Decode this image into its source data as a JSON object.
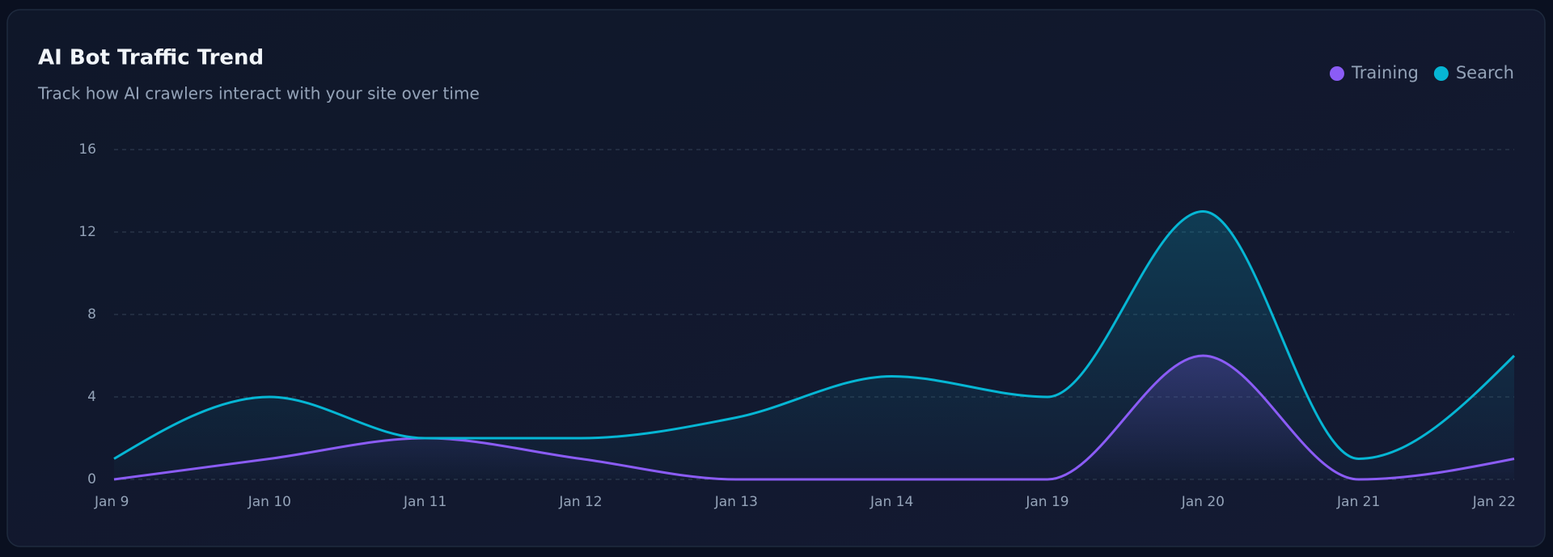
{
  "chart_data": {
    "type": "line",
    "title": "AI Bot Traffic Trend",
    "subtitle": "Track how AI crawlers interact with your site over time",
    "categories": [
      "Jan 9",
      "Jan 10",
      "Jan 11",
      "Jan 12",
      "Jan 13",
      "Jan 14",
      "Jan 19",
      "Jan 20",
      "Jan 21",
      "Jan 22"
    ],
    "series": [
      {
        "name": "Training",
        "color": "#8b5cf6",
        "values": [
          0,
          1,
          2,
          1,
          0,
          0,
          0,
          6,
          0,
          1
        ]
      },
      {
        "name": "Search",
        "color": "#06b6d4",
        "values": [
          1,
          4,
          2,
          2,
          3,
          5,
          4,
          13,
          1,
          6
        ]
      }
    ],
    "ylim": [
      0,
      16
    ],
    "yticks": [
      0,
      4,
      8,
      12,
      16
    ],
    "grid": true,
    "legend": "top-right"
  }
}
